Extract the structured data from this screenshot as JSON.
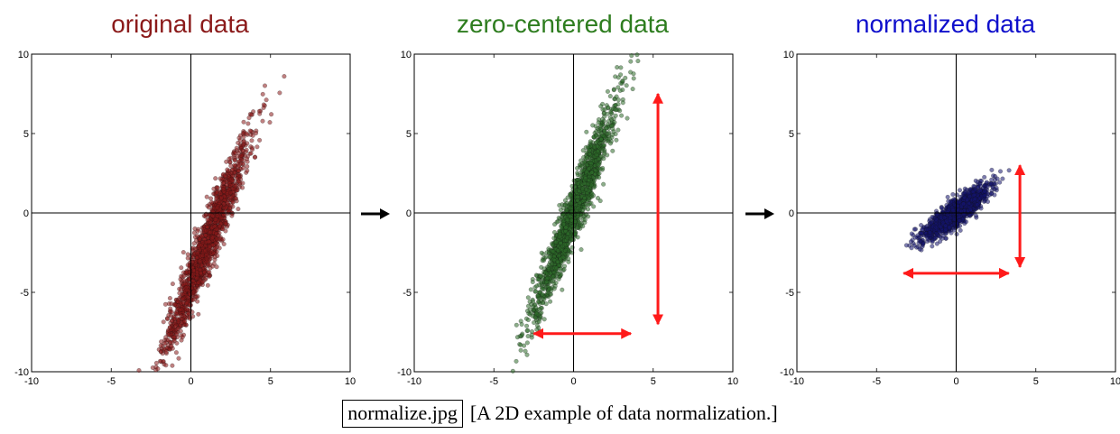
{
  "chart_data": [
    {
      "type": "scatter",
      "title": "original data",
      "title_color": "#8b1a1a",
      "point_color": "#8b1a1a",
      "xlim": [
        -10,
        10
      ],
      "ylim": [
        -10,
        10
      ],
      "xticks": [
        "-10",
        "-5",
        "0",
        "5",
        "10"
      ],
      "yticks": [
        "10",
        "5",
        "0",
        "-5",
        "-10"
      ],
      "cloud": {
        "center": [
          1.0,
          -2.0
        ],
        "slope": 2.45,
        "spread_x": 1.35,
        "noise": 0.95,
        "count": 1600
      }
    },
    {
      "type": "scatter",
      "title": "zero-centered data",
      "title_color": "#2e7d1f",
      "point_color": "#2e6b2a",
      "xlim": [
        -10,
        10
      ],
      "ylim": [
        -10,
        10
      ],
      "xticks": [
        "-10",
        "-5",
        "0",
        "5",
        "10"
      ],
      "yticks": [
        "10",
        "5",
        "0",
        "-5",
        "-10"
      ],
      "cloud": {
        "center": [
          0,
          0
        ],
        "slope": 2.45,
        "spread_x": 1.35,
        "noise": 0.95,
        "count": 1600
      },
      "arrows": [
        {
          "orientation": "vertical",
          "x": 5.3,
          "from": -7.0,
          "to": 7.5,
          "color": "#ff1a1a"
        },
        {
          "orientation": "horizontal",
          "y": -7.6,
          "from": -2.5,
          "to": 3.6,
          "color": "#ff1a1a"
        }
      ]
    },
    {
      "type": "scatter",
      "title": "normalized data",
      "title_color": "#1010cc",
      "point_color": "#14146e",
      "xlim": [
        -10,
        10
      ],
      "ylim": [
        -10,
        10
      ],
      "xticks": [
        "-10",
        "-5",
        "0",
        "5",
        "10"
      ],
      "yticks": [
        "10",
        "5",
        "0",
        "-5",
        "-10"
      ],
      "cloud": {
        "center": [
          0,
          0
        ],
        "slope": 0.72,
        "spread_x": 1.0,
        "noise": 0.4,
        "count": 1600
      },
      "arrows": [
        {
          "orientation": "vertical",
          "x": 4.0,
          "from": -3.4,
          "to": 3.0,
          "color": "#ff1a1a"
        },
        {
          "orientation": "horizontal",
          "y": -3.8,
          "from": -3.3,
          "to": 3.3,
          "color": "#ff1a1a"
        }
      ]
    }
  ],
  "flow_arrow_color": "#000000",
  "caption": {
    "file": "normalize.jpg",
    "description": "[A 2D example of data normalization.]"
  }
}
